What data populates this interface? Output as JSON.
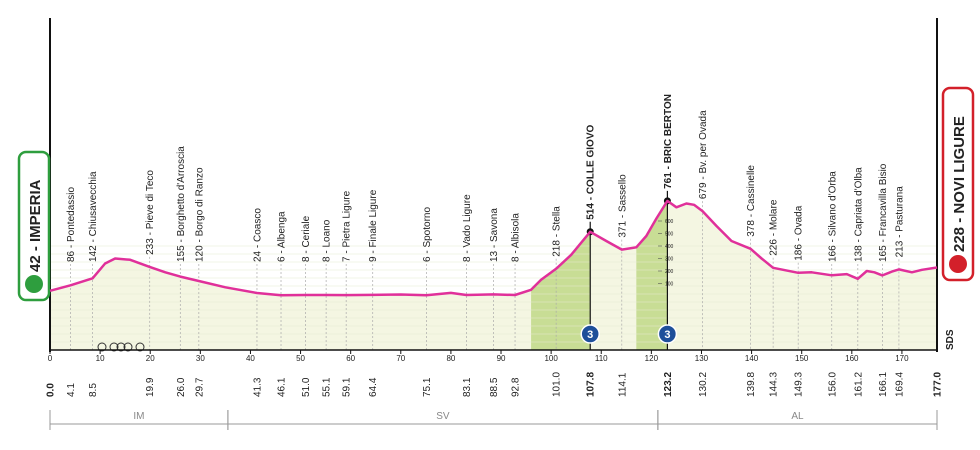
{
  "chart_data": {
    "type": "profile",
    "start": {
      "label": "42 - IMPERIA",
      "km": {
        "value": 0,
        "label": "0.0"
      }
    },
    "finish": {
      "label": "228 - NOVI LIGURE",
      "km": {
        "value": 177,
        "label": "177.0"
      }
    },
    "xlim": [
      0,
      177
    ],
    "xticks": [
      0,
      10,
      20,
      30,
      40,
      50,
      60,
      70,
      80,
      90,
      100,
      110,
      120,
      130,
      140,
      150,
      160,
      170
    ],
    "altitude_ticks": [
      100,
      200,
      300,
      400,
      500,
      600
    ],
    "profile": {
      "km": [
        0,
        4.1,
        8.5,
        11,
        13,
        16,
        19.9,
        23,
        26,
        29.7,
        35,
        41.3,
        46.1,
        51,
        55.1,
        59.1,
        64.4,
        70,
        75.1,
        80,
        83.1,
        88.5,
        92.8,
        96,
        98,
        101,
        104,
        107.8,
        111,
        114.1,
        117,
        119,
        121,
        123.2,
        125,
        127,
        128.5,
        130.2,
        133,
        136,
        139.8,
        142,
        144.3,
        149.3,
        152,
        156,
        159,
        161.2,
        163,
        164.5,
        166.1,
        168,
        169.4,
        172,
        174,
        177
      ],
      "altitude": [
        42,
        86,
        142,
        260,
        300,
        290,
        233,
        190,
        155,
        120,
        70,
        24,
        6,
        8,
        8,
        7,
        9,
        12,
        6,
        25,
        8,
        13,
        8,
        50,
        130,
        218,
        330,
        514,
        440,
        371,
        390,
        480,
        620,
        761,
        710,
        740,
        730,
        679,
        560,
        440,
        378,
        300,
        226,
        186,
        190,
        166,
        175,
        138,
        200,
        190,
        165,
        195,
        213,
        190,
        210,
        228
      ]
    },
    "climbs": [
      {
        "start": 96,
        "end": 107.8,
        "category": "3"
      },
      {
        "start": 117,
        "end": 123.2,
        "category": "3"
      }
    ],
    "waypoints": [
      {
        "km": {
          "value": 4.1,
          "label": "4.1"
        },
        "label": "86 - Pontedassio",
        "altitude": 86
      },
      {
        "km": {
          "value": 8.5,
          "label": "8.5"
        },
        "label": "142 - Chiusavecchia",
        "altitude": 142
      },
      {
        "km": {
          "value": 19.9,
          "label": "19.9"
        },
        "label": "233 - Pieve di Teco",
        "altitude": 233
      },
      {
        "km": {
          "value": 26,
          "label": "26.0"
        },
        "label": "155 - Borghetto d'Arroscia",
        "altitude": 155
      },
      {
        "km": {
          "value": 29.7,
          "label": "29.7"
        },
        "label": "120 - Borgo di Ranzo",
        "altitude": 120
      },
      {
        "km": {
          "value": 41.3,
          "label": "41.3"
        },
        "label": "24 - Coasco",
        "altitude": 24
      },
      {
        "km": {
          "value": 46.1,
          "label": "46.1"
        },
        "label": "6 - Albenga",
        "altitude": 6
      },
      {
        "km": {
          "value": 51,
          "label": "51.0"
        },
        "label": "8 - Ceriale",
        "altitude": 8
      },
      {
        "km": {
          "value": 55.1,
          "label": "55.1"
        },
        "label": "8 - Loano",
        "altitude": 8
      },
      {
        "km": {
          "value": 59.1,
          "label": "59.1"
        },
        "label": "7 - Pietra Ligure",
        "altitude": 7
      },
      {
        "km": {
          "value": 64.4,
          "label": "64.4"
        },
        "label": "9 - Finale Ligure",
        "altitude": 9
      },
      {
        "km": {
          "value": 75.1,
          "label": "75.1"
        },
        "label": "6 - Spotorno",
        "altitude": 6
      },
      {
        "km": {
          "value": 83.1,
          "label": "83.1"
        },
        "label": "8 - Vado Ligure",
        "altitude": 8
      },
      {
        "km": {
          "value": 88.5,
          "label": "88.5"
        },
        "label": "13 - Savona",
        "altitude": 13
      },
      {
        "km": {
          "value": 92.8,
          "label": "92.8"
        },
        "label": "8 - Albisola",
        "altitude": 8
      },
      {
        "km": {
          "value": 101,
          "label": "101.0"
        },
        "label": "218 - Stella",
        "altitude": 218
      },
      {
        "km": {
          "value": 107.8,
          "label": "107.8"
        },
        "label": "514 - COLLE GIOVO",
        "altitude": 514,
        "climb": true
      },
      {
        "km": {
          "value": 114.1,
          "label": "114.1"
        },
        "label": "371 - Sassello",
        "altitude": 371
      },
      {
        "km": {
          "value": 123.2,
          "label": "123.2"
        },
        "label": "761 - BRIC BERTON",
        "altitude": 761,
        "climb": true
      },
      {
        "km": {
          "value": 130.2,
          "label": "130.2"
        },
        "label": "679 - Bv. per Ovada",
        "altitude": 679
      },
      {
        "km": {
          "value": 139.8,
          "label": "139.8"
        },
        "label": "378 - Cassinelle",
        "altitude": 378
      },
      {
        "km": {
          "value": 144.3,
          "label": "144.3"
        },
        "label": "226 - Molare",
        "altitude": 226
      },
      {
        "km": {
          "value": 149.3,
          "label": "149.3"
        },
        "label": "186 - Ovada",
        "altitude": 186
      },
      {
        "km": {
          "value": 156,
          "label": "156.0"
        },
        "label": "166 - Silvano d'Orba",
        "altitude": 166
      },
      {
        "km": {
          "value": 161.2,
          "label": "161.2"
        },
        "label": "138 - Capriata d'Olba",
        "altitude": 138
      },
      {
        "km": {
          "value": 166.1,
          "label": "166.1"
        },
        "label": "165 - Francavilla Bisio",
        "altitude": 165
      },
      {
        "km": {
          "value": 169.4,
          "label": "169.4"
        },
        "label": "213 - Pasturana",
        "altitude": 213
      }
    ],
    "regions": [
      {
        "label": "IM",
        "start": 0,
        "end": 35.5
      },
      {
        "label": "SV",
        "start": 35.5,
        "end": 121.3
      },
      {
        "label": "AL",
        "start": 121.3,
        "end": 177
      }
    ],
    "logo": "SDS",
    "line_color": "#e0309a",
    "area_color": "#f4f6e2",
    "climb_color": "#c8dd95"
  }
}
